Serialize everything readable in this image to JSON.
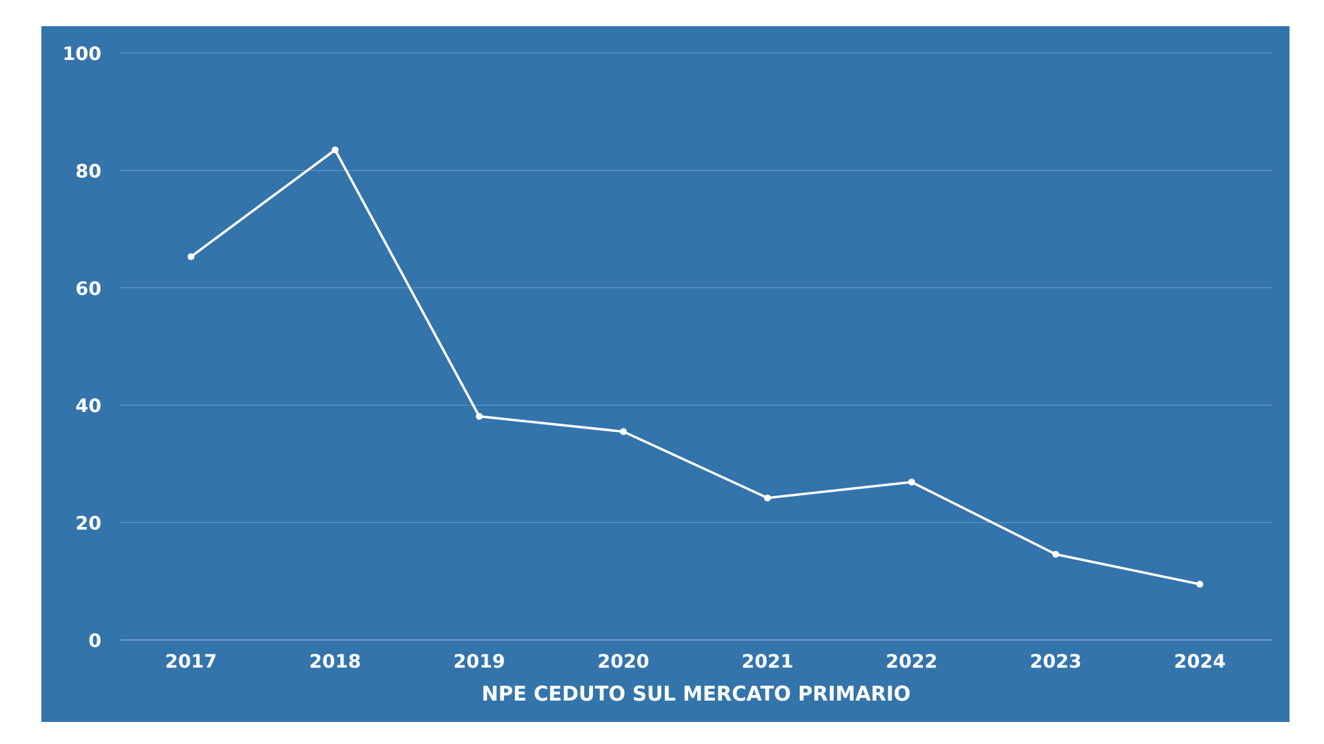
{
  "chart_data": {
    "type": "line",
    "title": "",
    "xlabel": "NPE CEDUTO SUL MERCATO PRIMARIO",
    "ylabel": "",
    "categories": [
      "2017",
      "2018",
      "2019",
      "2020",
      "2021",
      "2022",
      "2023",
      "2024"
    ],
    "series": [
      {
        "values": [
          65.3,
          83.5,
          38.1,
          35.5,
          24.2,
          26.9,
          14.6,
          9.5
        ]
      }
    ],
    "ylim": [
      0,
      100
    ],
    "yticks": [
      0,
      20,
      40,
      60,
      80,
      100
    ],
    "grid": true,
    "legend": "none",
    "colors": {
      "background": "#3374ab",
      "line": "#ffffff",
      "text": "#ffffff",
      "grid": "#6d9cc8"
    }
  }
}
